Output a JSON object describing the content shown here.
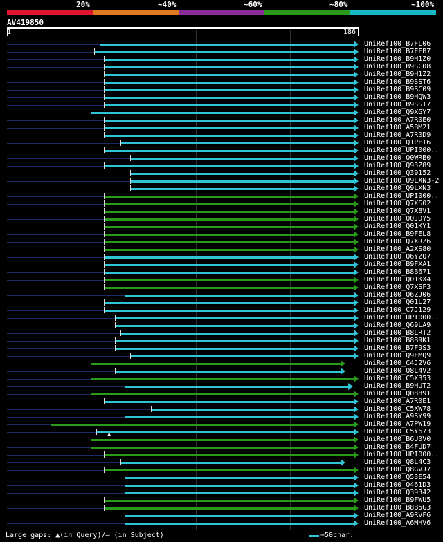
{
  "legend": [
    {
      "label": "20%",
      "color": "#e0152f"
    },
    {
      "label": "~40%",
      "color": "#e07a20"
    },
    {
      "label": "~60%",
      "color": "#8a2d9a"
    },
    {
      "label": "~80%",
      "color": "#2a9a1a"
    },
    {
      "label": "~100%",
      "color": "#17b8c4"
    }
  ],
  "query": {
    "id": "AV419850",
    "start": "1",
    "end": "186"
  },
  "footer": {
    "gaps_text": "Large gaps: ▲(in Query)/— (in Subject)",
    "scale_text": "=50char."
  },
  "colors": {
    "cyan": "#2ec4d6",
    "green": "#2a9a1a"
  },
  "hits": [
    {
      "name": "UniRef100_B7FL06",
      "start": 50,
      "color": "cyan"
    },
    {
      "name": "UniRef100_B7FFB7",
      "start": 47,
      "color": "cyan"
    },
    {
      "name": "UniRef100_B9H1Z0",
      "start": 52,
      "color": "cyan"
    },
    {
      "name": "UniRef100_B9SC08",
      "start": 52,
      "color": "cyan"
    },
    {
      "name": "UniRef100_B9H1Z2",
      "start": 52,
      "color": "cyan"
    },
    {
      "name": "UniRef100_B9SST6",
      "start": 52,
      "color": "cyan"
    },
    {
      "name": "UniRef100_B9SC09",
      "start": 52,
      "color": "cyan"
    },
    {
      "name": "UniRef100_B9HQW3",
      "start": 52,
      "color": "cyan"
    },
    {
      "name": "UniRef100_B9SST7",
      "start": 52,
      "color": "cyan"
    },
    {
      "name": "UniRef100_Q9XGY7",
      "start": 45,
      "color": "cyan"
    },
    {
      "name": "UniRef100_A7R0E0",
      "start": 52,
      "color": "cyan"
    },
    {
      "name": "UniRef100_A5BM21",
      "start": 52,
      "color": "cyan"
    },
    {
      "name": "UniRef100_A7R0D9",
      "start": 52,
      "color": "cyan"
    },
    {
      "name": "UniRef100_Q1PEI6",
      "start": 61,
      "color": "cyan"
    },
    {
      "name": "UniRef100_UPI000..",
      "start": 52,
      "color": "cyan"
    },
    {
      "name": "UniRef100_Q0WRB0",
      "start": 66,
      "color": "cyan"
    },
    {
      "name": "UniRef100_Q93Z89",
      "start": 52,
      "color": "cyan"
    },
    {
      "name": "UniRef100_Q39152",
      "start": 66,
      "color": "cyan"
    },
    {
      "name": "UniRef100_Q9LXN3-2",
      "start": 66,
      "color": "cyan"
    },
    {
      "name": "UniRef100_Q9LXN3",
      "start": 66,
      "color": "cyan"
    },
    {
      "name": "UniRef100_UPI000..",
      "start": 52,
      "color": "green"
    },
    {
      "name": "UniRef100_Q7XS02",
      "start": 52,
      "color": "green"
    },
    {
      "name": "UniRef100_Q7X8V1",
      "start": 52,
      "color": "green"
    },
    {
      "name": "UniRef100_Q0JDY5",
      "start": 52,
      "color": "green"
    },
    {
      "name": "UniRef100_Q01KY1",
      "start": 52,
      "color": "green"
    },
    {
      "name": "UniRef100_B9FEL8",
      "start": 52,
      "color": "green"
    },
    {
      "name": "UniRef100_Q7XRZ6",
      "start": 52,
      "color": "green"
    },
    {
      "name": "UniRef100_A2XS80",
      "start": 52,
      "color": "green"
    },
    {
      "name": "UniRef100_Q6YZQ7",
      "start": 52,
      "color": "cyan"
    },
    {
      "name": "UniRef100_B9FXA1",
      "start": 52,
      "color": "cyan"
    },
    {
      "name": "UniRef100_B8B671",
      "start": 52,
      "color": "cyan"
    },
    {
      "name": "UniRef100_Q01KX4",
      "start": 52,
      "color": "green"
    },
    {
      "name": "UniRef100_Q7XSF3",
      "start": 52,
      "color": "green"
    },
    {
      "name": "UniRef100_Q6ZJ06",
      "start": 63,
      "color": "cyan"
    },
    {
      "name": "UniRef100_Q01L27",
      "start": 52,
      "color": "cyan"
    },
    {
      "name": "UniRef100_C7J129",
      "start": 52,
      "color": "cyan"
    },
    {
      "name": "UniRef100_UPI000..",
      "start": 58,
      "color": "cyan"
    },
    {
      "name": "UniRef100_Q69LA9",
      "start": 58,
      "color": "cyan"
    },
    {
      "name": "UniRef100_B8LRT2",
      "start": 61,
      "color": "cyan"
    },
    {
      "name": "UniRef100_B8B9K1",
      "start": 58,
      "color": "cyan"
    },
    {
      "name": "UniRef100_B7F9S3",
      "start": 58,
      "color": "cyan"
    },
    {
      "name": "UniRef100_Q9FMQ9",
      "start": 66,
      "color": "cyan"
    },
    {
      "name": "UniRef100_C4J2V6",
      "start": 45,
      "color": "green",
      "end": 179
    },
    {
      "name": "UniRef100_Q8L4V2",
      "start": 58,
      "color": "cyan",
      "end": 179
    },
    {
      "name": "UniRef100_C5X353",
      "start": 45,
      "color": "green"
    },
    {
      "name": "UniRef100_B9HUT2",
      "start": 63,
      "color": "cyan",
      "end": 183
    },
    {
      "name": "UniRef100_Q08891",
      "start": 45,
      "color": "green"
    },
    {
      "name": "UniRef100_A7R0E1",
      "start": 52,
      "color": "cyan"
    },
    {
      "name": "UniRef100_C5XW78",
      "start": 77,
      "color": "cyan"
    },
    {
      "name": "UniRef100_A9SY99",
      "start": 63,
      "color": "cyan"
    },
    {
      "name": "UniRef100_A7PW19",
      "start": 24,
      "color": "green"
    },
    {
      "name": "UniRef100_C5Y673",
      "start": 48,
      "color": "cyan",
      "qgap": 54
    },
    {
      "name": "UniRef100_B6U0V0",
      "start": 45,
      "color": "green"
    },
    {
      "name": "UniRef100_B4FUD7",
      "start": 45,
      "color": "green"
    },
    {
      "name": "UniRef100_UPI000..",
      "start": 52,
      "color": "green"
    },
    {
      "name": "UniRef100_Q8L4C3",
      "start": 61,
      "color": "cyan",
      "end": 179
    },
    {
      "name": "UniRef100_Q8GVJ7",
      "start": 52,
      "color": "green"
    },
    {
      "name": "UniRef100_Q53E54",
      "start": 63,
      "color": "cyan"
    },
    {
      "name": "UniRef100_Q461D3",
      "start": 63,
      "color": "cyan"
    },
    {
      "name": "UniRef100_Q39342",
      "start": 63,
      "color": "cyan"
    },
    {
      "name": "UniRef100_B9FWU5",
      "start": 52,
      "color": "green"
    },
    {
      "name": "UniRef100_B8B5G3",
      "start": 52,
      "color": "green"
    },
    {
      "name": "UniRef100_A9RVF6",
      "start": 63,
      "color": "cyan"
    },
    {
      "name": "UniRef100_A6MHV6",
      "start": 63,
      "color": "cyan"
    }
  ]
}
